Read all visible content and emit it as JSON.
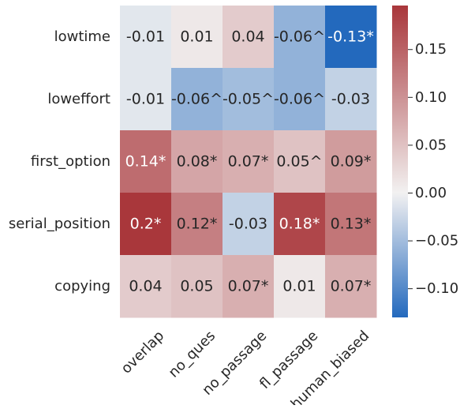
{
  "chart_data": {
    "type": "heatmap",
    "title": "",
    "xlabel": "",
    "ylabel": "",
    "rows": [
      "lowtime",
      "loweffort",
      "first_option",
      "serial_position",
      "copying"
    ],
    "columns": [
      "overlap",
      "no_ques",
      "no_passage",
      "fl_passage",
      "human_biased"
    ],
    "values": [
      [
        -0.01,
        0.01,
        0.04,
        -0.06,
        -0.13
      ],
      [
        -0.01,
        -0.06,
        -0.05,
        -0.06,
        -0.03
      ],
      [
        0.14,
        0.08,
        0.07,
        0.05,
        0.09
      ],
      [
        0.2,
        0.12,
        -0.03,
        0.18,
        0.13
      ],
      [
        0.04,
        0.05,
        0.07,
        0.01,
        0.07
      ]
    ],
    "annotations": [
      [
        "-0.01",
        "0.01",
        "0.04",
        "-0.06^",
        "-0.13*"
      ],
      [
        "-0.01",
        "-0.06^",
        "-0.05^",
        "-0.06^",
        "-0.03"
      ],
      [
        "0.14*",
        "0.08*",
        "0.07*",
        "0.05^",
        "0.09*"
      ],
      [
        "0.2*",
        "0.12*",
        "-0.03",
        "0.18*",
        "0.13*"
      ],
      [
        "0.04",
        "0.05",
        "0.07*",
        "0.01",
        "0.07*"
      ]
    ],
    "colormap": "vlag",
    "colorbar": {
      "range": [
        -0.13,
        0.196
      ],
      "ticks": [
        -0.1,
        -0.05,
        0.0,
        0.05,
        0.1,
        0.15
      ],
      "tick_labels": [
        "−0.10",
        "−0.05",
        "0.00",
        "0.05",
        "0.10",
        "0.15"
      ]
    },
    "colors": {
      "low": "#2369bd",
      "mid": "#f2f1f1",
      "high": "#a9373b"
    }
  }
}
